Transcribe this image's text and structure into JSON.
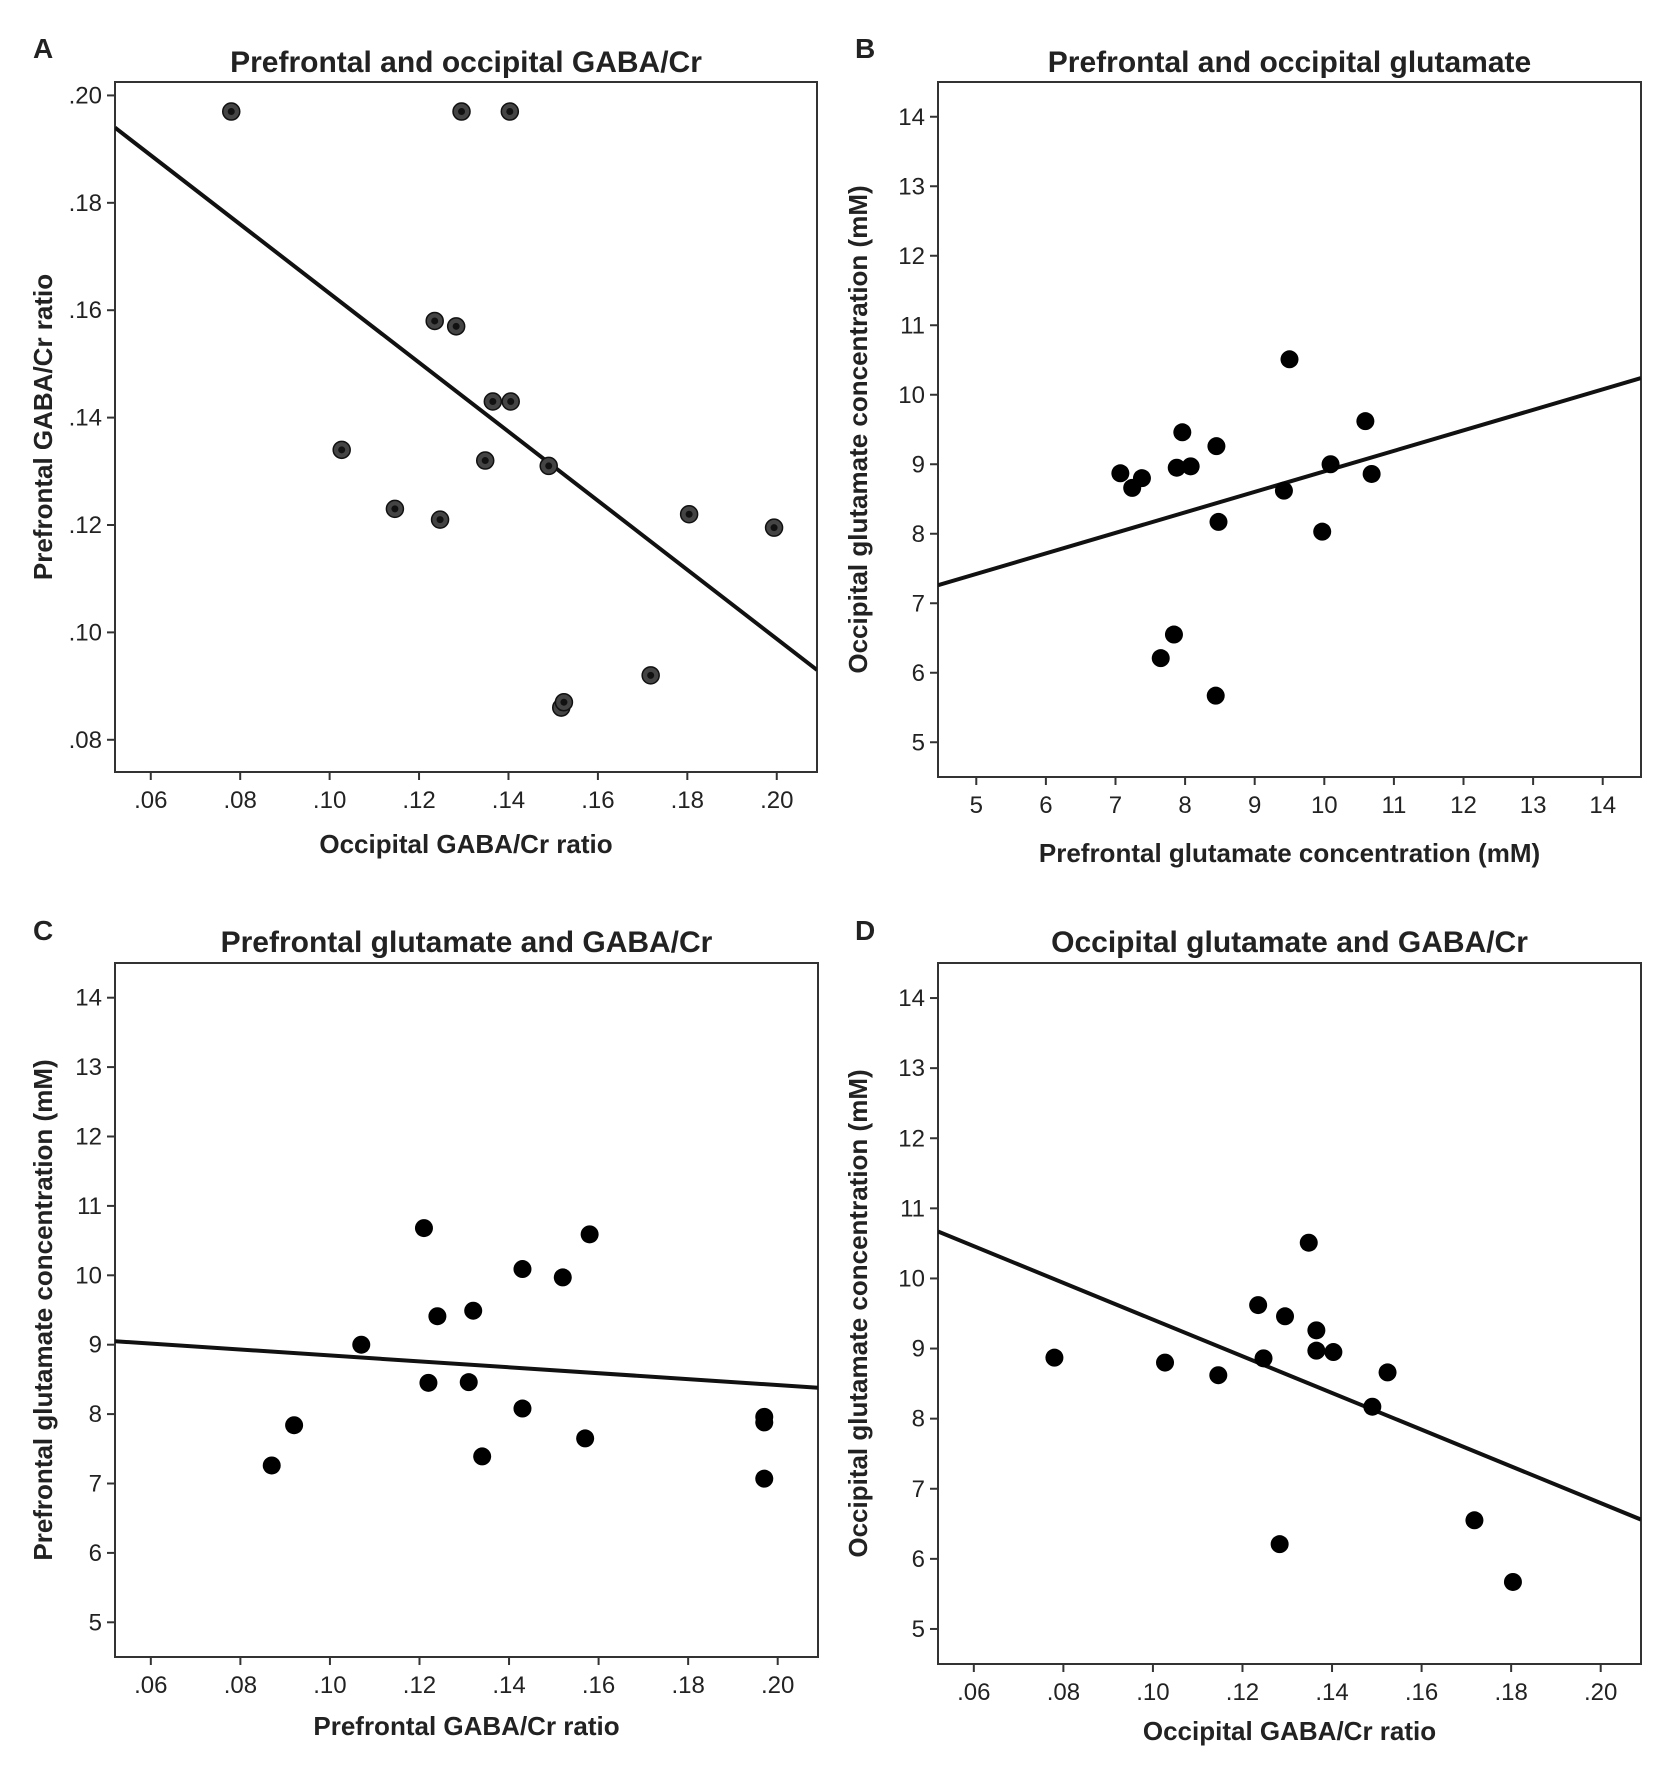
{
  "chart_data": [
    {
      "panel": "A",
      "type": "scatter",
      "title": "Prefrontal and occipital GABA/Cr",
      "xlabel": "Occipital GABA/Cr ratio",
      "ylabel": "Prefrontal GABA/Cr ratio",
      "xlim": [
        0.052,
        0.209
      ],
      "ylim": [
        0.074,
        0.2025
      ],
      "xticks": [
        0.06,
        0.08,
        0.1,
        0.12,
        0.14,
        0.16,
        0.18,
        0.2
      ],
      "xtick_labels": [
        ".06",
        ".08",
        ".10",
        ".12",
        ".14",
        ".16",
        ".18",
        ".20"
      ],
      "yticks": [
        0.08,
        0.1,
        0.12,
        0.14,
        0.16,
        0.18,
        0.2
      ],
      "ytick_labels": [
        ".08",
        ".10",
        ".12",
        ".14",
        ".16",
        ".18",
        ".20"
      ],
      "grid": false,
      "marker_style": "ringed",
      "x": [
        0.078,
        0.1295,
        0.1403,
        0.1235,
        0.1283,
        0.1365,
        0.1405,
        0.1027,
        0.1348,
        0.149,
        0.1146,
        0.1247,
        0.1804,
        0.1994,
        0.1518,
        0.1524,
        0.1718
      ],
      "y": [
        0.197,
        0.197,
        0.197,
        0.158,
        0.157,
        0.143,
        0.143,
        0.134,
        0.132,
        0.131,
        0.123,
        0.121,
        0.122,
        0.1195,
        0.086,
        0.087,
        0.092
      ],
      "fit_line": {
        "x": [
          0.052,
          0.209
        ],
        "y": [
          0.194,
          0.093
        ]
      }
    },
    {
      "panel": "B",
      "type": "scatter",
      "title": "Prefrontal and occipital glutamate",
      "xlabel": "Prefrontal glutamate concentration (mM)",
      "ylabel": "Occipital glutamate concentration (mM)",
      "xlim": [
        4.45,
        14.55
      ],
      "ylim": [
        4.5,
        14.5
      ],
      "xticks": [
        5,
        6,
        7,
        8,
        9,
        10,
        11,
        12,
        13,
        14
      ],
      "xtick_labels": [
        "5",
        "6",
        "7",
        "8",
        "9",
        "10",
        "11",
        "12",
        "13",
        "14"
      ],
      "yticks": [
        5,
        6,
        7,
        8,
        9,
        10,
        11,
        12,
        13,
        14
      ],
      "ytick_labels": [
        "5",
        "6",
        "7",
        "8",
        "9",
        "10",
        "11",
        "12",
        "13",
        "14"
      ],
      "grid": false,
      "marker_style": "solid",
      "x": [
        7.07,
        7.24,
        7.38,
        7.96,
        7.88,
        8.08,
        8.45,
        8.48,
        7.65,
        7.84,
        8.44,
        9.5,
        9.42,
        9.97,
        10.09,
        10.59,
        10.68
      ],
      "y": [
        8.87,
        8.66,
        8.8,
        9.46,
        8.95,
        8.97,
        9.26,
        8.17,
        6.21,
        6.55,
        5.67,
        10.51,
        8.62,
        8.03,
        9.0,
        9.62,
        8.86
      ],
      "fit_line": {
        "x": [
          4.45,
          14.55
        ],
        "y": [
          7.26,
          10.24
        ]
      }
    },
    {
      "panel": "C",
      "type": "scatter",
      "title": "Prefrontal glutamate and GABA/Cr",
      "xlabel": "Prefrontal GABA/Cr ratio",
      "ylabel": "Prefrontal glutamate concentration (mM)",
      "xlim": [
        0.052,
        0.209
      ],
      "ylim": [
        4.5,
        14.5
      ],
      "xticks": [
        0.06,
        0.08,
        0.1,
        0.12,
        0.14,
        0.16,
        0.18,
        0.2
      ],
      "xtick_labels": [
        ".06",
        ".08",
        ".10",
        ".12",
        ".14",
        ".16",
        ".18",
        ".20"
      ],
      "yticks": [
        5,
        6,
        7,
        8,
        9,
        10,
        11,
        12,
        13,
        14
      ],
      "ytick_labels": [
        "5",
        "6",
        "7",
        "8",
        "9",
        "10",
        "11",
        "12",
        "13",
        "14"
      ],
      "grid": false,
      "marker_style": "solid",
      "x": [
        0.087,
        0.092,
        0.107,
        0.121,
        0.122,
        0.124,
        0.131,
        0.132,
        0.134,
        0.143,
        0.143,
        0.152,
        0.157,
        0.158,
        0.197,
        0.197,
        0.197
      ],
      "y": [
        7.26,
        7.84,
        9.0,
        10.68,
        8.45,
        9.41,
        8.46,
        9.49,
        7.39,
        10.09,
        8.08,
        9.97,
        7.65,
        10.59,
        7.96,
        7.88,
        7.07
      ],
      "fit_line": {
        "x": [
          0.052,
          0.209
        ],
        "y": [
          9.05,
          8.38
        ]
      }
    },
    {
      "panel": "D",
      "type": "scatter",
      "title": "Occipital glutamate and GABA/Cr",
      "xlabel": "Occipital GABA/Cr ratio",
      "ylabel": "Occipital glutamate concentration (mM)",
      "xlim": [
        0.052,
        0.209
      ],
      "ylim": [
        4.5,
        14.5
      ],
      "xticks": [
        0.06,
        0.08,
        0.1,
        0.12,
        0.14,
        0.16,
        0.18,
        0.2
      ],
      "xtick_labels": [
        ".06",
        ".08",
        ".10",
        ".12",
        ".14",
        ".16",
        ".18",
        ".20"
      ],
      "yticks": [
        5,
        6,
        7,
        8,
        9,
        10,
        11,
        12,
        13,
        14
      ],
      "ytick_labels": [
        "5",
        "6",
        "7",
        "8",
        "9",
        "10",
        "11",
        "12",
        "13",
        "14"
      ],
      "grid": false,
      "marker_style": "solid",
      "x": [
        0.078,
        0.1027,
        0.1146,
        0.1235,
        0.1247,
        0.1295,
        0.1283,
        0.1348,
        0.1365,
        0.1365,
        0.1403,
        0.149,
        0.1524,
        0.1718,
        0.1804
      ],
      "y": [
        8.87,
        8.8,
        8.62,
        9.62,
        8.86,
        9.46,
        6.21,
        10.51,
        9.26,
        8.97,
        8.95,
        8.17,
        8.66,
        6.55,
        5.67
      ],
      "fit_line": {
        "x": [
          0.052,
          0.209
        ],
        "y": [
          10.67,
          6.56
        ]
      }
    }
  ]
}
